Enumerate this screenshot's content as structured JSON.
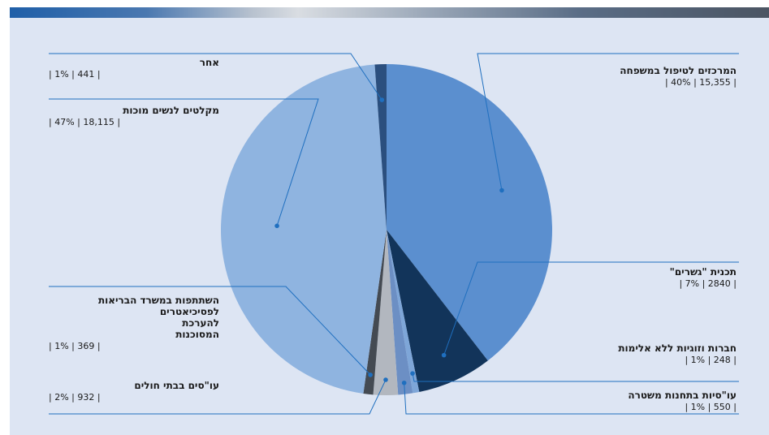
{
  "chart_data": {
    "type": "pie",
    "slices": [
      {
        "name": "המרכזים לטיפול במשפחה",
        "stat": "| 40% | 15,355 |",
        "percent": 40,
        "value": 15355,
        "color": "#5b8fcf"
      },
      {
        "name": "תכנית \"גשרים\"",
        "stat": "| 7% | 2840 |",
        "percent": 7,
        "value": 2840,
        "color": "#12345a"
      },
      {
        "name": "חברות וזוגיות  ללא אלימות",
        "stat": "| 1% | 248 |",
        "percent": 1,
        "value": 248,
        "color": "#7ea6d8"
      },
      {
        "name": "עו\"סיות בתחנות משטרה",
        "stat": "| 1% | 550 |",
        "percent": 1,
        "value": 550,
        "color": "#6c8fc4"
      },
      {
        "name": "עו\"סים בבתי חולים",
        "stat": "| 2% | 932 |",
        "percent": 2,
        "value": 932,
        "color": "#b2b7bf"
      },
      {
        "name": "השתתפות במשרד הבריאות\nלפסיכיאטרים\nלהערכת\nהמסוכנות",
        "stat": "| 1% | 369 |",
        "percent": 1,
        "value": 369,
        "color": "#444a52"
      },
      {
        "name": "מקלטים לנשים מוכות",
        "stat": "| 47% | 18,115 |",
        "percent": 47,
        "value": 18115,
        "color": "#8fb4e0"
      },
      {
        "name": "אחר",
        "stat": "| 1% | 441 |",
        "percent": 1,
        "value": 441,
        "color": "#2b4f7e"
      }
    ],
    "line_color": "#1f6fbf"
  }
}
